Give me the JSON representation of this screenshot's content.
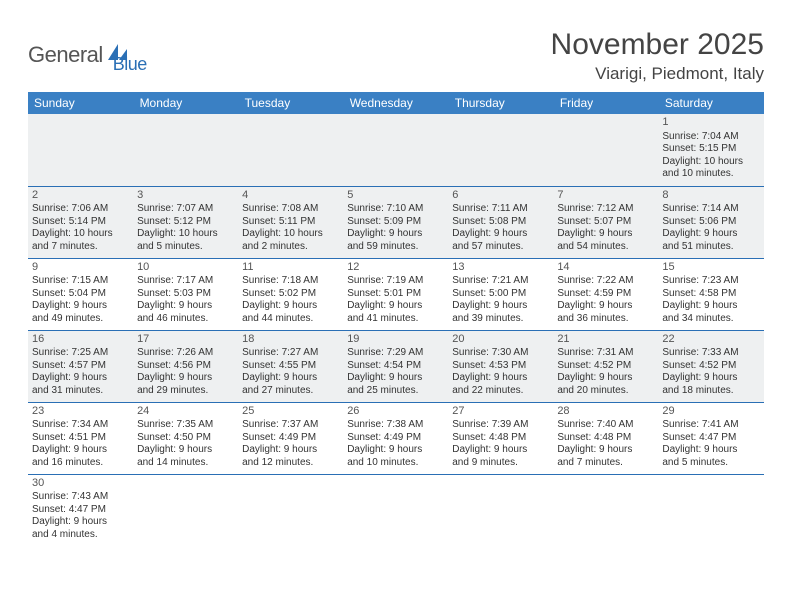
{
  "logo": {
    "part1": "General",
    "part2": "Blue"
  },
  "title": "November 2025",
  "location": "Viarigi, Piedmont, Italy",
  "colors": {
    "header_bg": "#3a80c4",
    "header_text": "#ffffff",
    "row_alt_bg": "#eef0f1",
    "border": "#2a6fb5",
    "logo_gray": "#555555",
    "logo_blue": "#2a6fb5"
  },
  "day_headers": [
    "Sunday",
    "Monday",
    "Tuesday",
    "Wednesday",
    "Thursday",
    "Friday",
    "Saturday"
  ],
  "weeks": [
    [
      null,
      null,
      null,
      null,
      null,
      null,
      {
        "n": "1",
        "sr": "Sunrise: 7:04 AM",
        "ss": "Sunset: 5:15 PM",
        "d1": "Daylight: 10 hours",
        "d2": "and 10 minutes."
      }
    ],
    [
      {
        "n": "2",
        "sr": "Sunrise: 7:06 AM",
        "ss": "Sunset: 5:14 PM",
        "d1": "Daylight: 10 hours",
        "d2": "and 7 minutes."
      },
      {
        "n": "3",
        "sr": "Sunrise: 7:07 AM",
        "ss": "Sunset: 5:12 PM",
        "d1": "Daylight: 10 hours",
        "d2": "and 5 minutes."
      },
      {
        "n": "4",
        "sr": "Sunrise: 7:08 AM",
        "ss": "Sunset: 5:11 PM",
        "d1": "Daylight: 10 hours",
        "d2": "and 2 minutes."
      },
      {
        "n": "5",
        "sr": "Sunrise: 7:10 AM",
        "ss": "Sunset: 5:09 PM",
        "d1": "Daylight: 9 hours",
        "d2": "and 59 minutes."
      },
      {
        "n": "6",
        "sr": "Sunrise: 7:11 AM",
        "ss": "Sunset: 5:08 PM",
        "d1": "Daylight: 9 hours",
        "d2": "and 57 minutes."
      },
      {
        "n": "7",
        "sr": "Sunrise: 7:12 AM",
        "ss": "Sunset: 5:07 PM",
        "d1": "Daylight: 9 hours",
        "d2": "and 54 minutes."
      },
      {
        "n": "8",
        "sr": "Sunrise: 7:14 AM",
        "ss": "Sunset: 5:06 PM",
        "d1": "Daylight: 9 hours",
        "d2": "and 51 minutes."
      }
    ],
    [
      {
        "n": "9",
        "sr": "Sunrise: 7:15 AM",
        "ss": "Sunset: 5:04 PM",
        "d1": "Daylight: 9 hours",
        "d2": "and 49 minutes."
      },
      {
        "n": "10",
        "sr": "Sunrise: 7:17 AM",
        "ss": "Sunset: 5:03 PM",
        "d1": "Daylight: 9 hours",
        "d2": "and 46 minutes."
      },
      {
        "n": "11",
        "sr": "Sunrise: 7:18 AM",
        "ss": "Sunset: 5:02 PM",
        "d1": "Daylight: 9 hours",
        "d2": "and 44 minutes."
      },
      {
        "n": "12",
        "sr": "Sunrise: 7:19 AM",
        "ss": "Sunset: 5:01 PM",
        "d1": "Daylight: 9 hours",
        "d2": "and 41 minutes."
      },
      {
        "n": "13",
        "sr": "Sunrise: 7:21 AM",
        "ss": "Sunset: 5:00 PM",
        "d1": "Daylight: 9 hours",
        "d2": "and 39 minutes."
      },
      {
        "n": "14",
        "sr": "Sunrise: 7:22 AM",
        "ss": "Sunset: 4:59 PM",
        "d1": "Daylight: 9 hours",
        "d2": "and 36 minutes."
      },
      {
        "n": "15",
        "sr": "Sunrise: 7:23 AM",
        "ss": "Sunset: 4:58 PM",
        "d1": "Daylight: 9 hours",
        "d2": "and 34 minutes."
      }
    ],
    [
      {
        "n": "16",
        "sr": "Sunrise: 7:25 AM",
        "ss": "Sunset: 4:57 PM",
        "d1": "Daylight: 9 hours",
        "d2": "and 31 minutes."
      },
      {
        "n": "17",
        "sr": "Sunrise: 7:26 AM",
        "ss": "Sunset: 4:56 PM",
        "d1": "Daylight: 9 hours",
        "d2": "and 29 minutes."
      },
      {
        "n": "18",
        "sr": "Sunrise: 7:27 AM",
        "ss": "Sunset: 4:55 PM",
        "d1": "Daylight: 9 hours",
        "d2": "and 27 minutes."
      },
      {
        "n": "19",
        "sr": "Sunrise: 7:29 AM",
        "ss": "Sunset: 4:54 PM",
        "d1": "Daylight: 9 hours",
        "d2": "and 25 minutes."
      },
      {
        "n": "20",
        "sr": "Sunrise: 7:30 AM",
        "ss": "Sunset: 4:53 PM",
        "d1": "Daylight: 9 hours",
        "d2": "and 22 minutes."
      },
      {
        "n": "21",
        "sr": "Sunrise: 7:31 AM",
        "ss": "Sunset: 4:52 PM",
        "d1": "Daylight: 9 hours",
        "d2": "and 20 minutes."
      },
      {
        "n": "22",
        "sr": "Sunrise: 7:33 AM",
        "ss": "Sunset: 4:52 PM",
        "d1": "Daylight: 9 hours",
        "d2": "and 18 minutes."
      }
    ],
    [
      {
        "n": "23",
        "sr": "Sunrise: 7:34 AM",
        "ss": "Sunset: 4:51 PM",
        "d1": "Daylight: 9 hours",
        "d2": "and 16 minutes."
      },
      {
        "n": "24",
        "sr": "Sunrise: 7:35 AM",
        "ss": "Sunset: 4:50 PM",
        "d1": "Daylight: 9 hours",
        "d2": "and 14 minutes."
      },
      {
        "n": "25",
        "sr": "Sunrise: 7:37 AM",
        "ss": "Sunset: 4:49 PM",
        "d1": "Daylight: 9 hours",
        "d2": "and 12 minutes."
      },
      {
        "n": "26",
        "sr": "Sunrise: 7:38 AM",
        "ss": "Sunset: 4:49 PM",
        "d1": "Daylight: 9 hours",
        "d2": "and 10 minutes."
      },
      {
        "n": "27",
        "sr": "Sunrise: 7:39 AM",
        "ss": "Sunset: 4:48 PM",
        "d1": "Daylight: 9 hours",
        "d2": "and 9 minutes."
      },
      {
        "n": "28",
        "sr": "Sunrise: 7:40 AM",
        "ss": "Sunset: 4:48 PM",
        "d1": "Daylight: 9 hours",
        "d2": "and 7 minutes."
      },
      {
        "n": "29",
        "sr": "Sunrise: 7:41 AM",
        "ss": "Sunset: 4:47 PM",
        "d1": "Daylight: 9 hours",
        "d2": "and 5 minutes."
      }
    ],
    [
      {
        "n": "30",
        "sr": "Sunrise: 7:43 AM",
        "ss": "Sunset: 4:47 PM",
        "d1": "Daylight: 9 hours",
        "d2": "and 4 minutes."
      },
      null,
      null,
      null,
      null,
      null,
      null
    ]
  ]
}
